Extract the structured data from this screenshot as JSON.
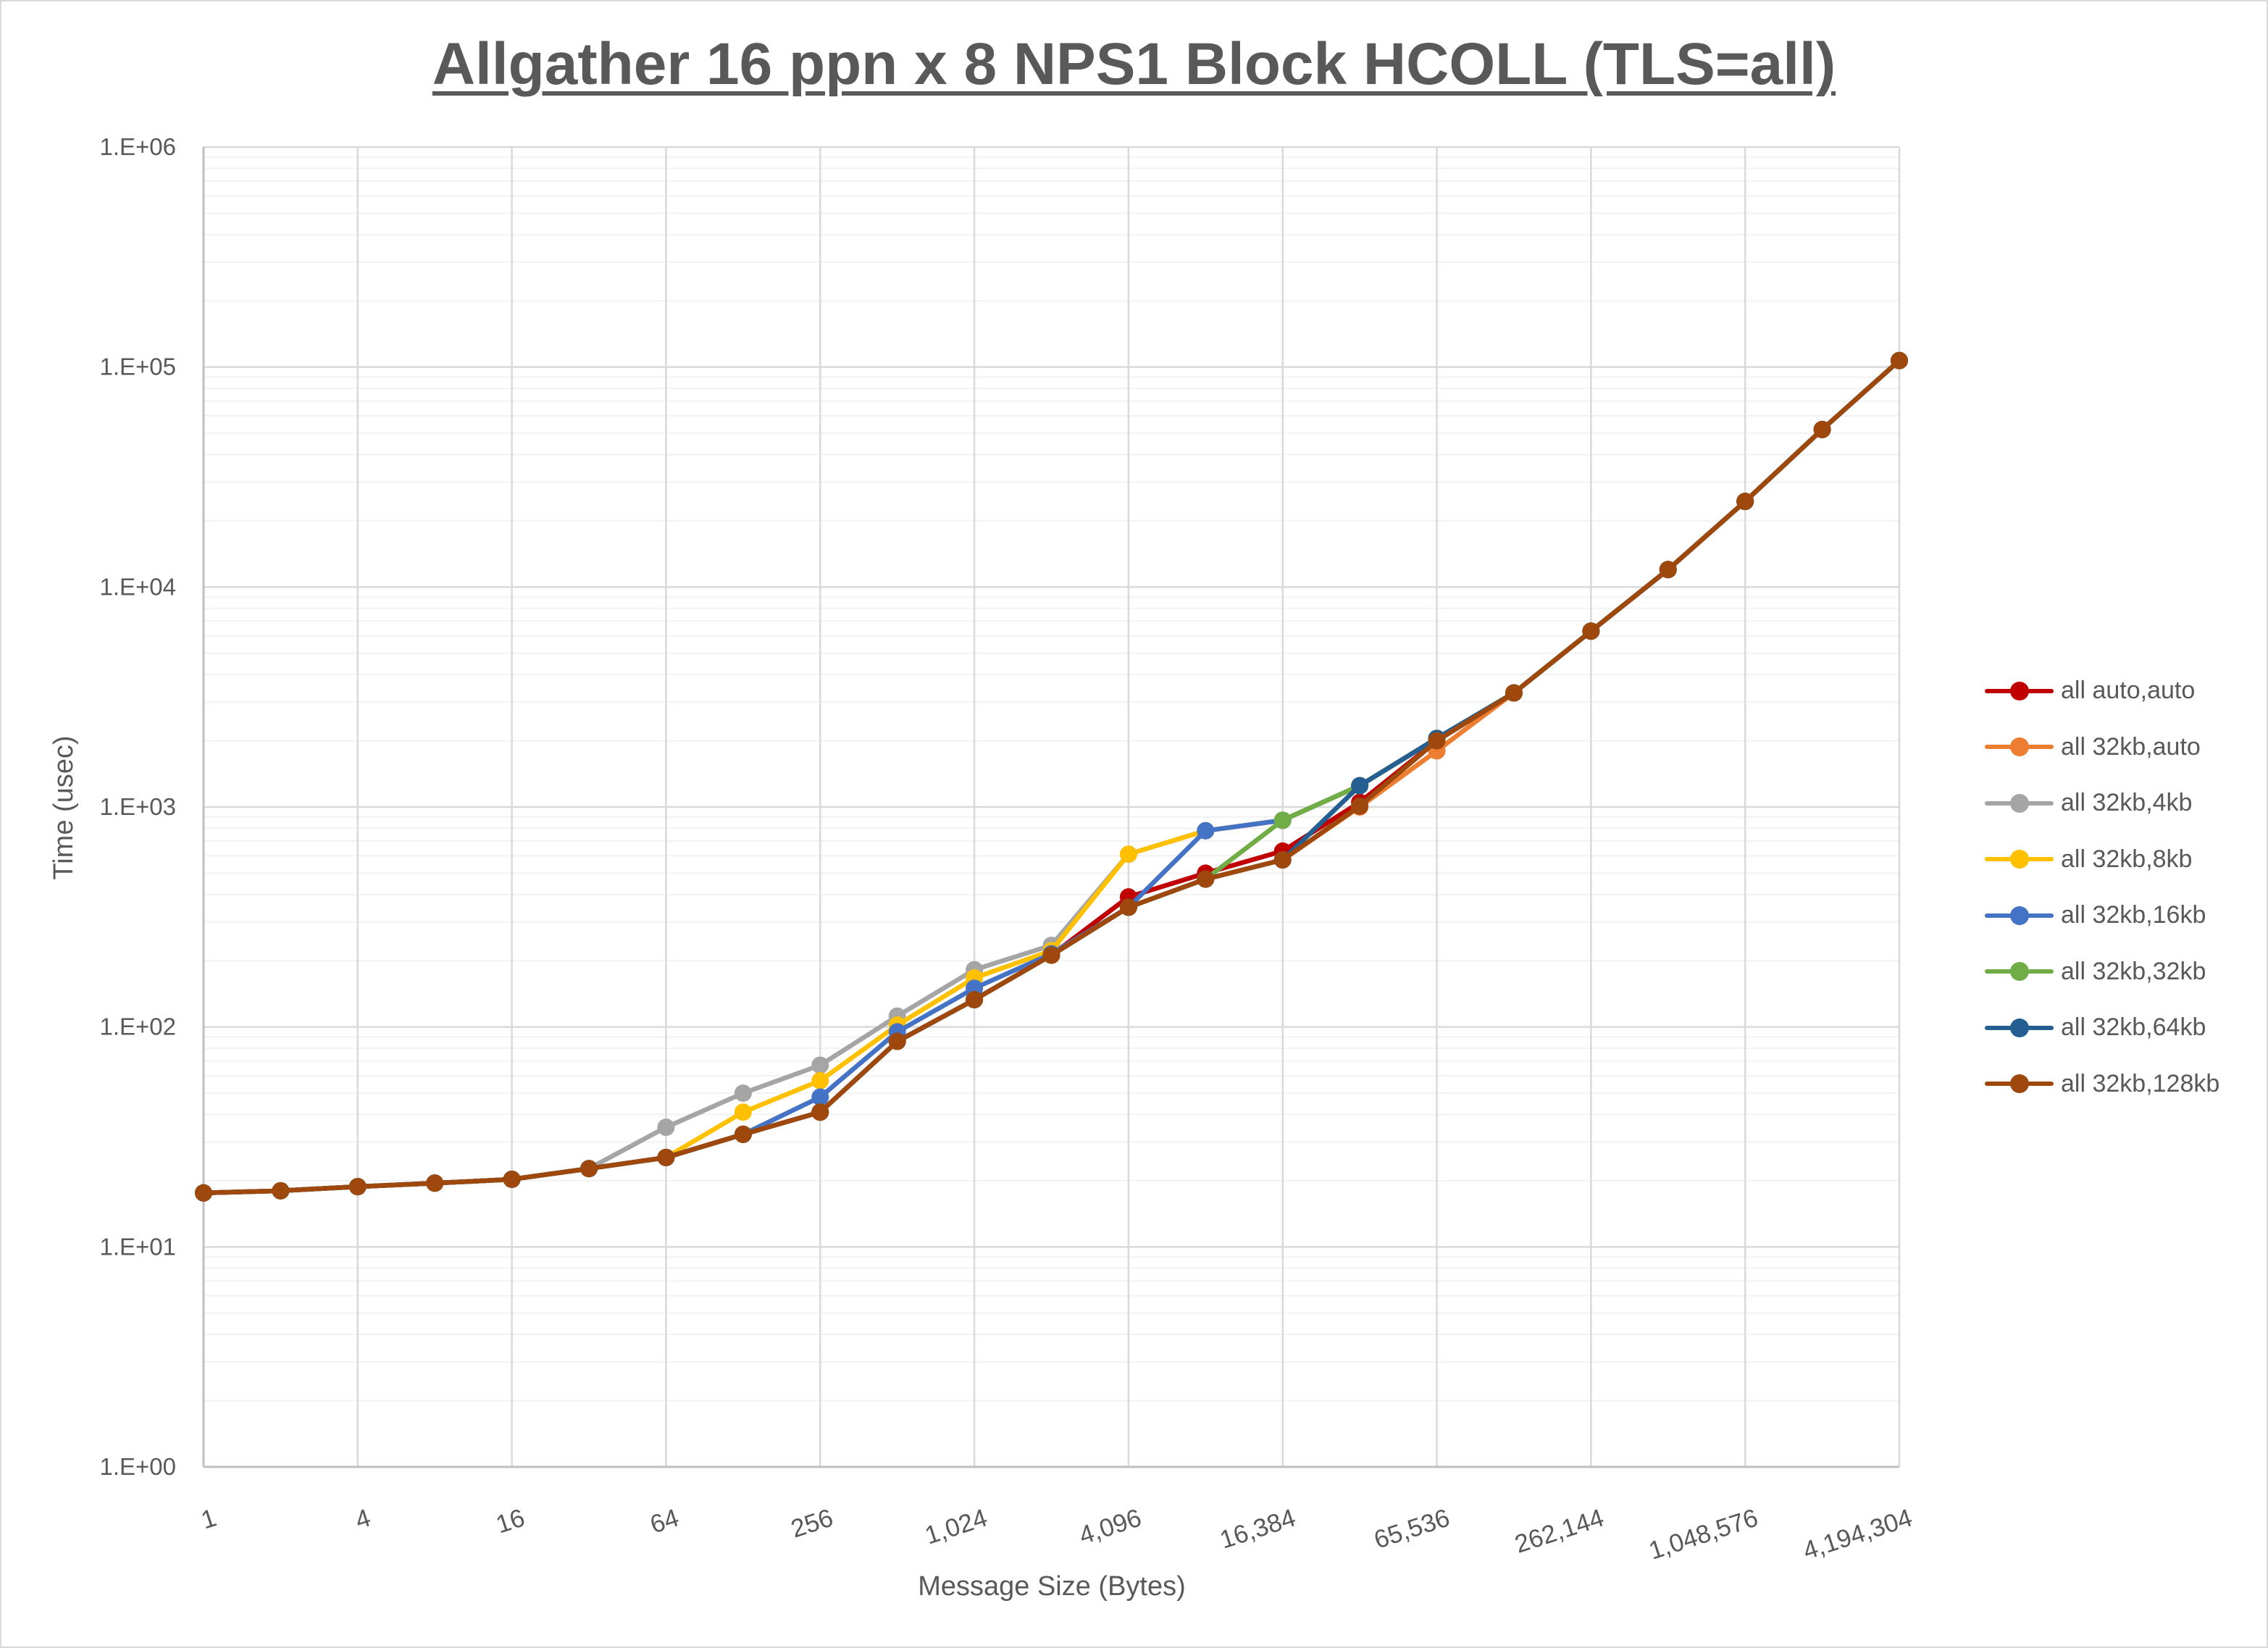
{
  "chart": {
    "title": "Allgather 16 ppn x 8 NPS1 Block HCOLL (TLS=all)",
    "xlabel": "Message Size (Bytes)",
    "ylabel": "Time (usec)",
    "y_ticks": [
      "1.E+00",
      "1.E+01",
      "1.E+02",
      "1.E+03",
      "1.E+04",
      "1.E+05",
      "1.E+06"
    ],
    "x_tick_labels": [
      "1",
      "4",
      "16",
      "64",
      "256",
      "1,024",
      "4,096",
      "16,384",
      "65,536",
      "262,144",
      "1,048,576",
      "4,194,304"
    ]
  },
  "legend": {
    "items": [
      {
        "label": "all auto,auto",
        "color": "#C00000"
      },
      {
        "label": "all 32kb,auto",
        "color": "#ED7D31"
      },
      {
        "label": "all 32kb,4kb",
        "color": "#A5A5A5"
      },
      {
        "label": "all 32kb,8kb",
        "color": "#FFC000"
      },
      {
        "label": "all 32kb,16kb",
        "color": "#4472C4"
      },
      {
        "label": "all 32kb,32kb",
        "color": "#70AD47"
      },
      {
        "label": "all 32kb,64kb",
        "color": "#255E91"
      },
      {
        "label": "all 32kb,128kb",
        "color": "#9E480E"
      }
    ]
  },
  "chart_data": {
    "type": "line",
    "title": "Allgather 16 ppn x 8 NPS1 Block HCOLL (TLS=all)",
    "xlabel": "Message Size (Bytes)",
    "ylabel": "Time (usec)",
    "yscale": "log",
    "ylim": [
      1,
      1000000
    ],
    "grid": true,
    "legend_position": "right",
    "x": [
      1,
      2,
      4,
      8,
      16,
      32,
      64,
      128,
      256,
      512,
      1024,
      2048,
      4096,
      8192,
      16384,
      32768,
      65536,
      131072,
      262144,
      524288,
      1048576,
      2097152,
      4194304
    ],
    "series": [
      {
        "name": "all auto,auto",
        "color": "#C00000",
        "values": [
          17.6,
          18.0,
          18.8,
          19.5,
          20.3,
          22.7,
          25.5,
          32.5,
          41,
          86,
          133,
          212,
          390,
          500,
          630,
          1050,
          2000,
          3300,
          6300,
          12000,
          24500,
          52000,
          107000
        ]
      },
      {
        "name": "all 32kb,auto",
        "color": "#ED7D31",
        "values": [
          17.6,
          18.0,
          18.8,
          19.5,
          20.3,
          22.7,
          25.5,
          32.5,
          41,
          86,
          133,
          212,
          350,
          470,
          575,
          1000,
          1800,
          3300,
          6300,
          12000,
          24500,
          52000,
          107000
        ]
      },
      {
        "name": "all 32kb,4kb",
        "color": "#A5A5A5",
        "values": [
          17.6,
          18.0,
          18.8,
          19.5,
          20.3,
          22.7,
          35,
          50,
          67,
          112,
          182,
          235,
          610,
          780,
          870,
          1250,
          2050,
          3300,
          6300,
          12000,
          24500,
          52000,
          107000
        ]
      },
      {
        "name": "all 32kb,8kb",
        "color": "#FFC000",
        "values": [
          17.6,
          18.0,
          18.8,
          19.5,
          20.3,
          22.7,
          25.5,
          41,
          57,
          102,
          167,
          222,
          610,
          780,
          870,
          1250,
          2050,
          3300,
          6300,
          12000,
          24500,
          52000,
          107000
        ]
      },
      {
        "name": "all 32kb,16kb",
        "color": "#4472C4",
        "values": [
          17.6,
          18.0,
          18.8,
          19.5,
          20.3,
          22.7,
          25.5,
          32.5,
          48,
          95,
          150,
          215,
          350,
          780,
          870,
          1250,
          2050,
          3300,
          6300,
          12000,
          24500,
          52000,
          107000
        ]
      },
      {
        "name": "all 32kb,32kb",
        "color": "#70AD47",
        "values": [
          17.6,
          18.0,
          18.8,
          19.5,
          20.3,
          22.7,
          25.5,
          32.5,
          41,
          86,
          133,
          212,
          350,
          470,
          870,
          1250,
          2050,
          3300,
          6300,
          12000,
          24500,
          52000,
          107000
        ]
      },
      {
        "name": "all 32kb,64kb",
        "color": "#255E91",
        "values": [
          17.6,
          18.0,
          18.8,
          19.5,
          20.3,
          22.7,
          25.5,
          32.5,
          41,
          86,
          133,
          212,
          350,
          470,
          575,
          1250,
          2050,
          3300,
          6300,
          12000,
          24500,
          52000,
          107000
        ]
      },
      {
        "name": "all 32kb,128kb",
        "color": "#9E480E",
        "values": [
          17.6,
          18.0,
          18.8,
          19.5,
          20.3,
          22.7,
          25.5,
          32.5,
          41,
          86,
          133,
          212,
          350,
          470,
          575,
          1010,
          2000,
          3300,
          6300,
          12000,
          24500,
          52000,
          107000
        ]
      }
    ]
  }
}
